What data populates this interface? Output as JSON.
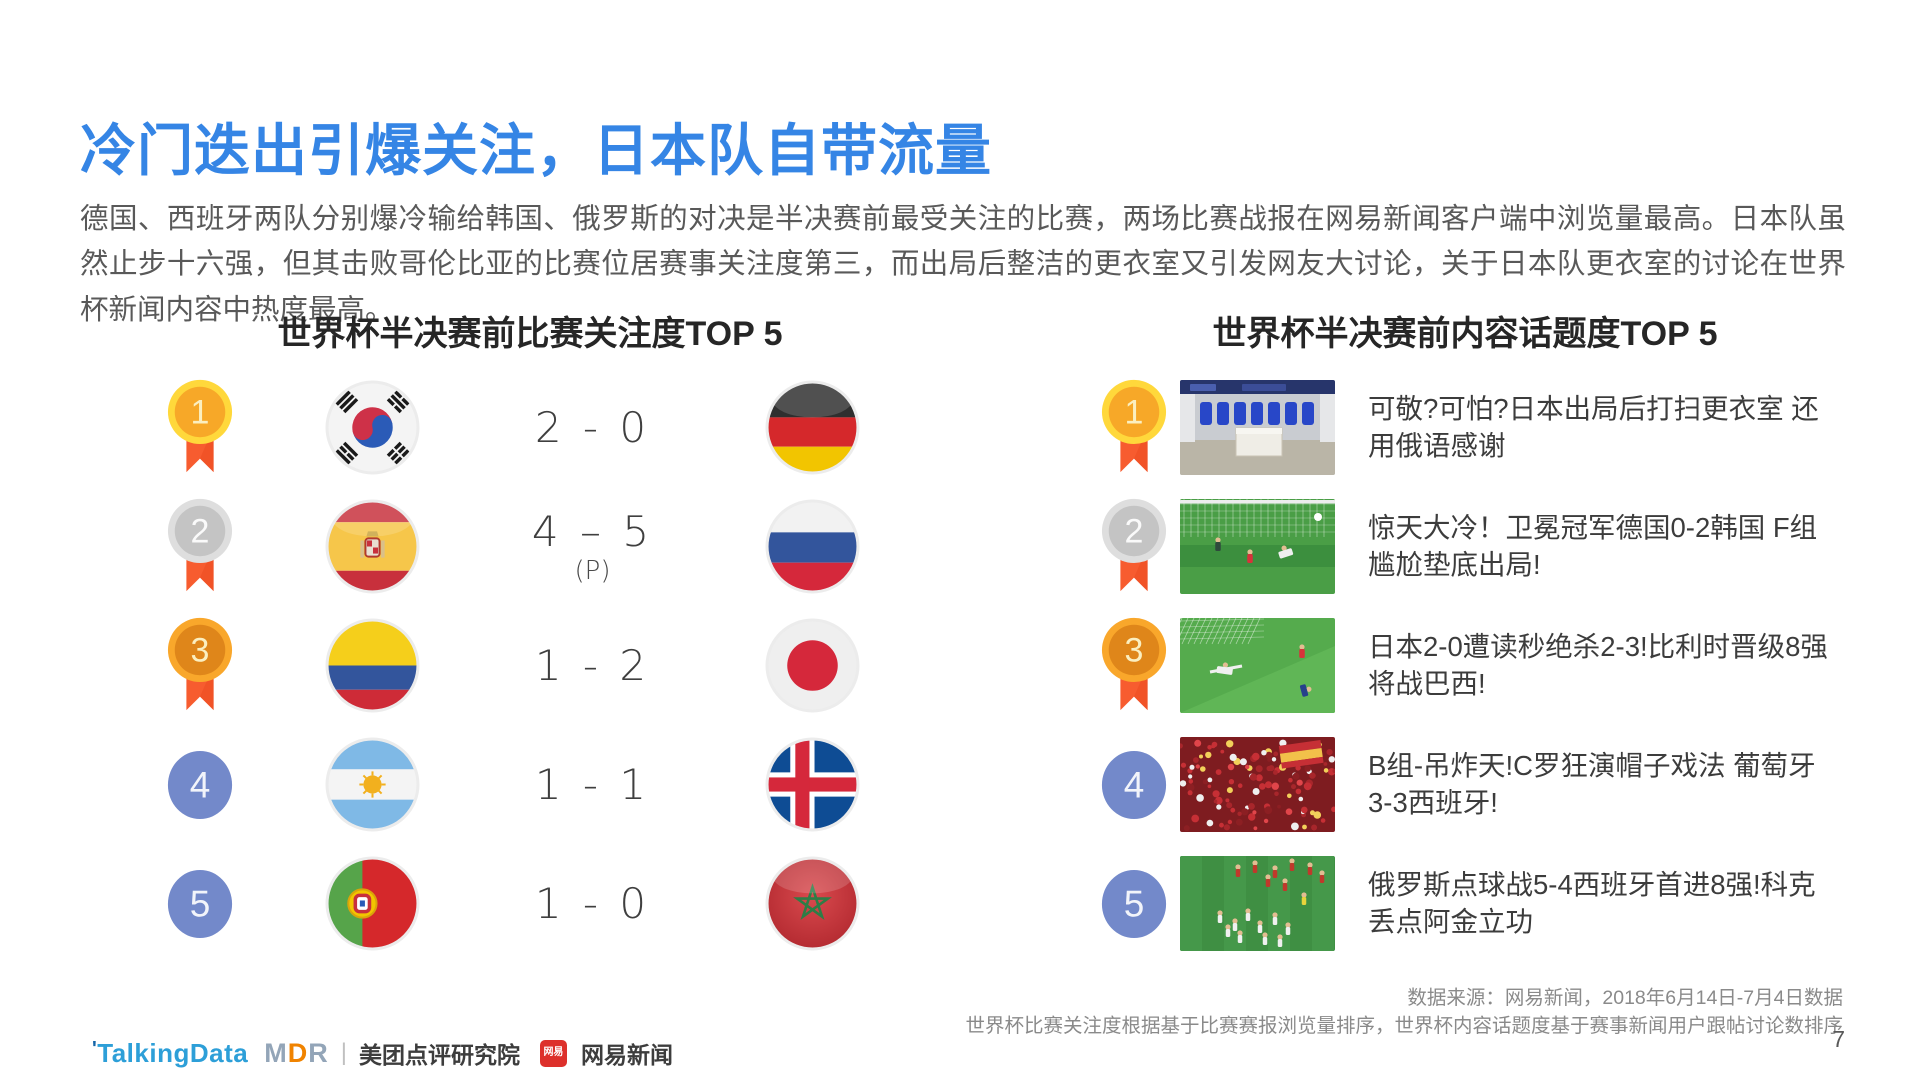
{
  "title": "冷门迭出引爆关注，日本队自带流量",
  "intro": "德国、西班牙两队分别爆冷输给韩国、俄罗斯的对决是半决赛前最受关注的比赛，两场比赛战报在网易新闻客户端中浏览量最高。日本队虽然止步十六强，但其击败哥伦比亚的比赛位居赛事关注度第三，而出局后整洁的更衣室又引发网友大讨论，关于日本队更衣室的讨论在世界杯新闻内容中热度最高。",
  "left_panel": {
    "title": "世界杯半决赛前比赛关注度TOP 5",
    "rows": [
      {
        "rank": "1",
        "team_a": "south-korea",
        "score": "2 - 0",
        "score_note": "",
        "team_b": "germany"
      },
      {
        "rank": "2",
        "team_a": "spain",
        "score": "4 – 5",
        "score_note": "(P)",
        "team_b": "russia"
      },
      {
        "rank": "3",
        "team_a": "colombia",
        "score": "1 - 2",
        "score_note": "",
        "team_b": "japan"
      },
      {
        "rank": "4",
        "team_a": "argentina",
        "score": "1 - 1",
        "score_note": "",
        "team_b": "iceland"
      },
      {
        "rank": "5",
        "team_a": "portugal",
        "score": "1 - 0",
        "score_note": "",
        "team_b": "morocco"
      }
    ]
  },
  "right_panel": {
    "title": "世界杯半决赛前内容话题度TOP 5",
    "rows": [
      {
        "rank": "1",
        "thumbnail": "locker-room",
        "headline": "可敬?可怕?日本出局后打扫更衣室 还用俄语感谢"
      },
      {
        "rank": "2",
        "thumbnail": "germany-korea-goal",
        "headline": "惊天大冷！卫冕冠军德国0-2韩国 F组尴尬垫底出局!"
      },
      {
        "rank": "3",
        "thumbnail": "japan-belgium-goal",
        "headline": "日本2-0遭读秒绝杀2-3!比利时晋级8强将战巴西!"
      },
      {
        "rank": "4",
        "thumbnail": "spain-fans-crowd",
        "headline": "B组-吊炸天!C罗狂演帽子戏法 葡萄牙3-3西班牙!"
      },
      {
        "rank": "5",
        "thumbnail": "russia-celebration",
        "headline": "俄罗斯点球战5-4西班牙首进8强!科克丢点阿金立功"
      }
    ]
  },
  "footer": {
    "source_line1": "数据来源：网易新闻，2018年6月14日-7月4日数据",
    "source_line2": "世界杯比赛关注度根据基于比赛赛报浏览量排序，世界杯内容话题度基于赛事新闻用户跟帖讨论数排序",
    "page_number": "7",
    "logos": {
      "talkingdata_tick": "'",
      "talkingdata": "TalkingData",
      "mdr": "MDR",
      "divider": "|",
      "meituan": "美团点评研究院",
      "netease_badge": "网易",
      "netease": "网易新闻"
    }
  },
  "colors": {
    "title_blue": "#3585E5",
    "body_gray": "#595959",
    "medal_gold_ring": "#FFD83B",
    "medal_gold": "#F7A828",
    "medal_silver_ring": "#DEDEDE",
    "medal_silver": "#C4C4C4",
    "medal_bronze_ring": "#F9A72B",
    "medal_bronze": "#DF861A",
    "ribbon_orange": "#F75C2F",
    "rank_blue": "#7389CA",
    "talkingdata_blue": "#2D9FD8",
    "mdr_orange": "#F08300",
    "mdr_gray": "#93A5B8",
    "netease_red": "#DD302B"
  }
}
